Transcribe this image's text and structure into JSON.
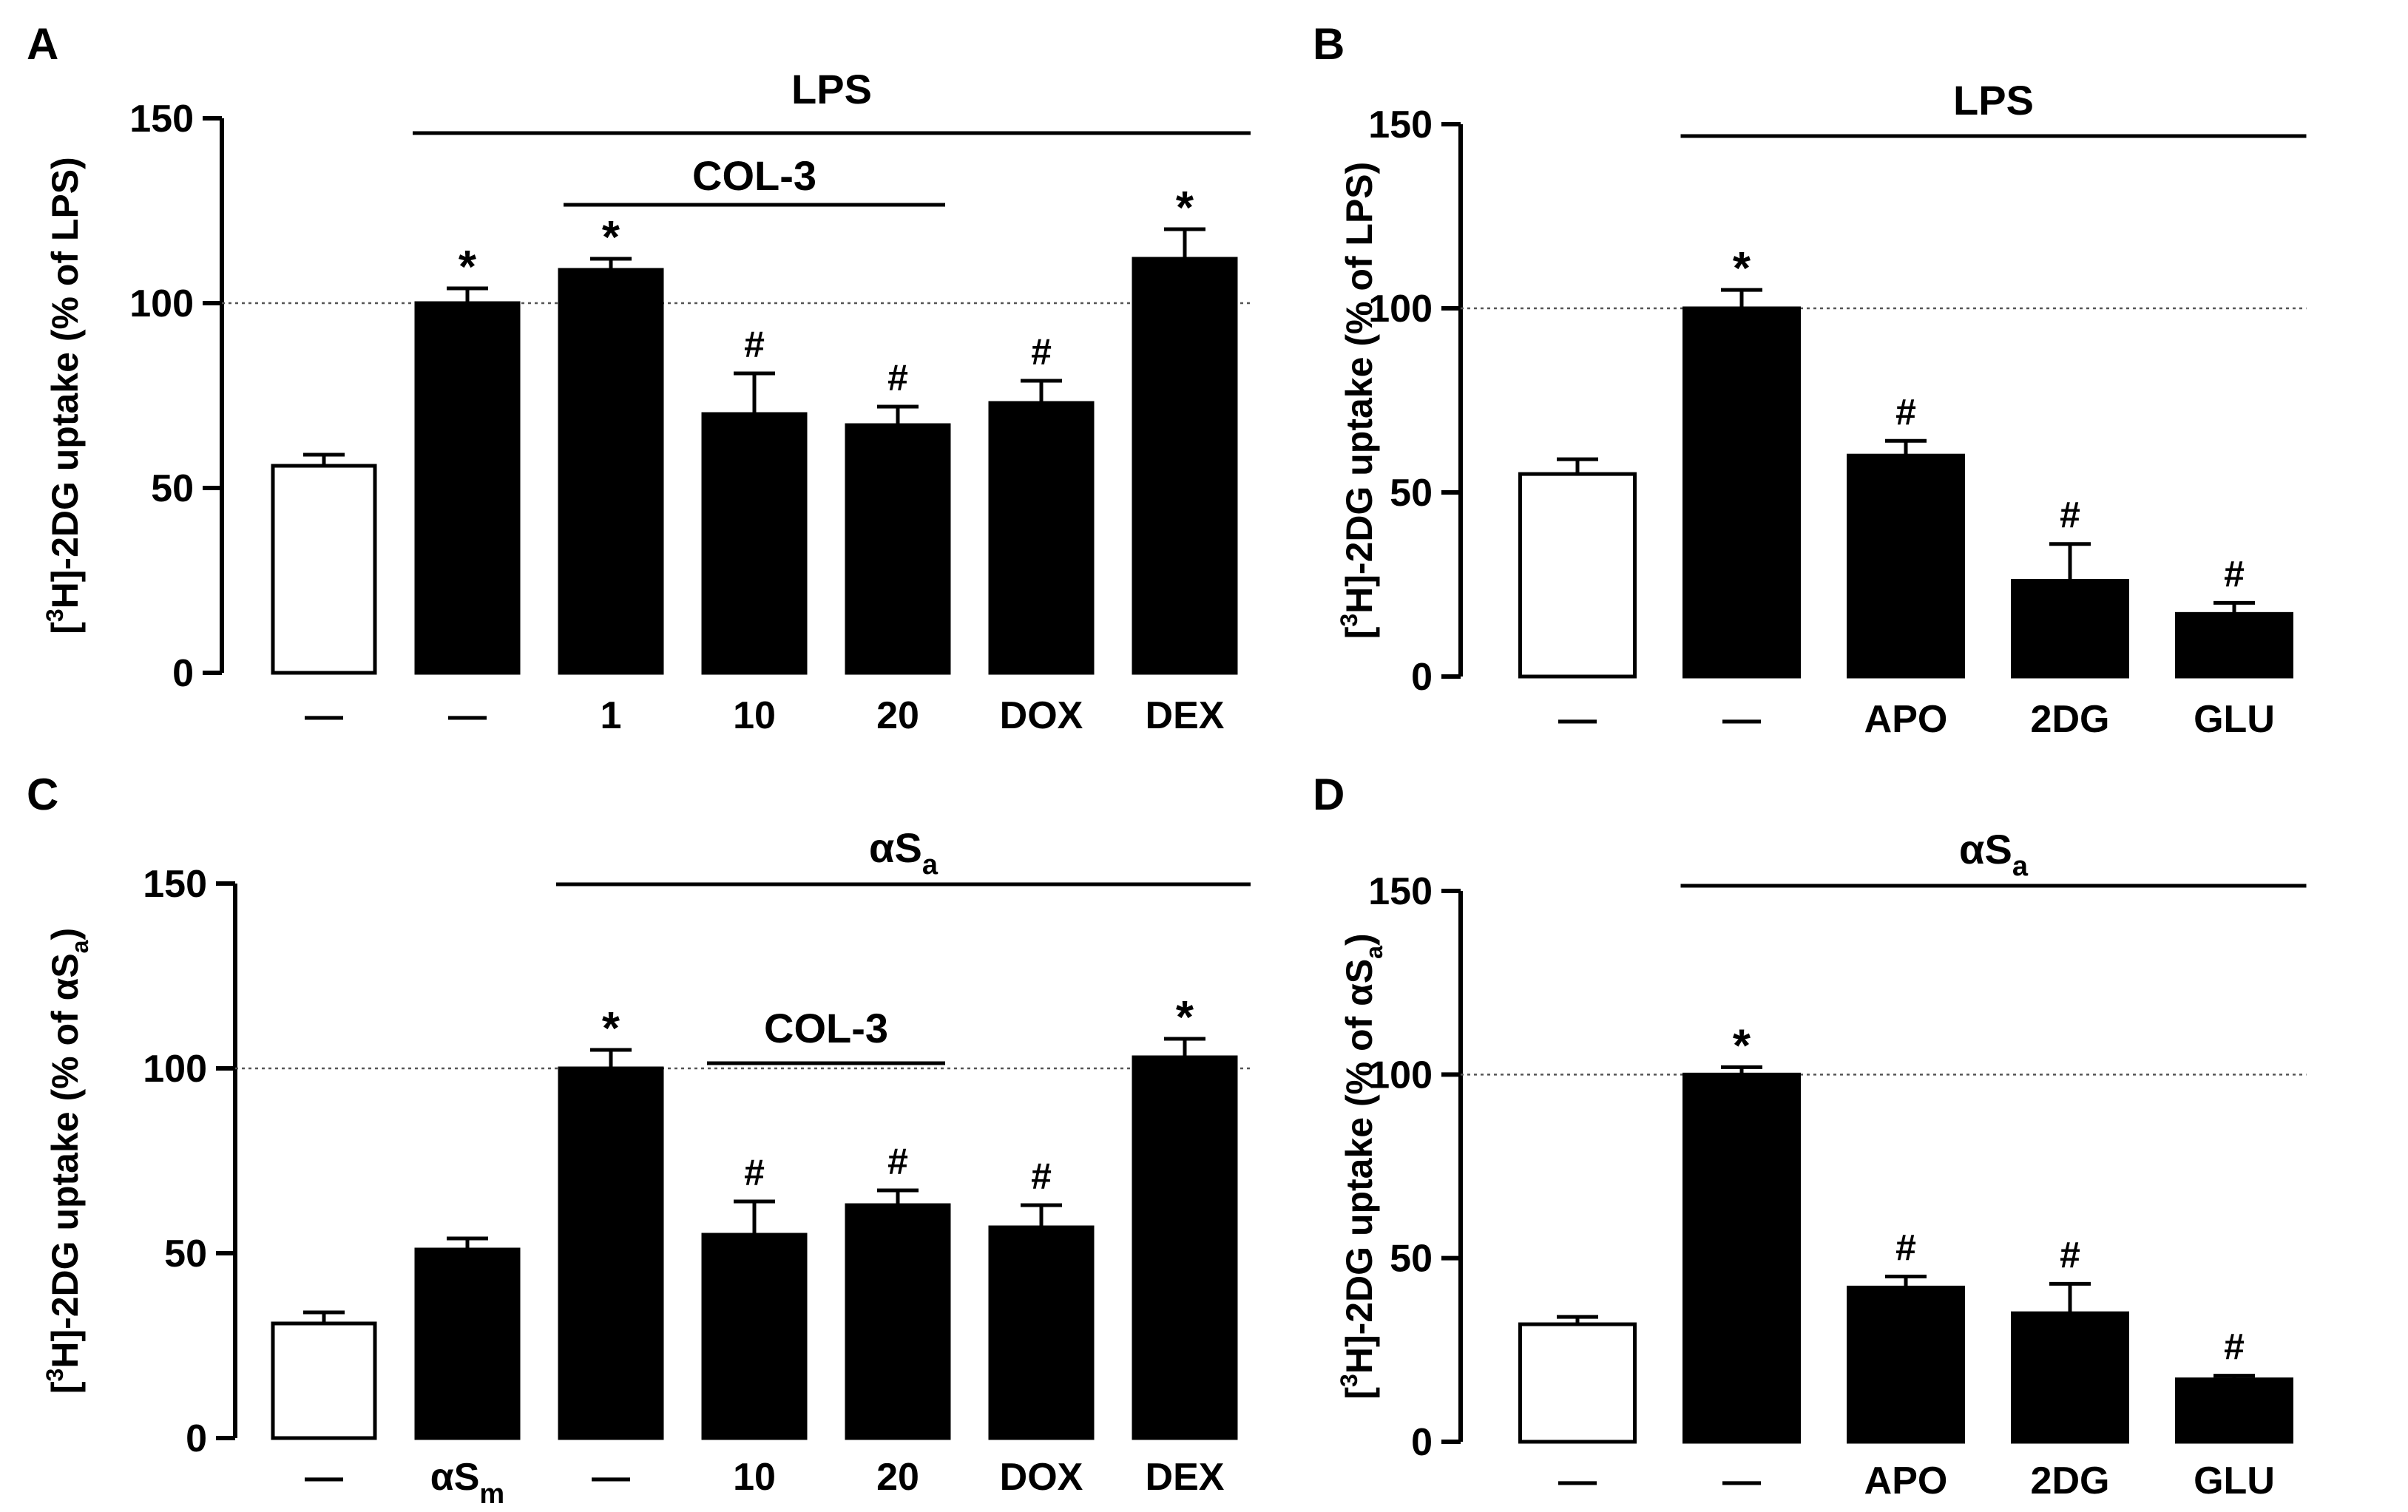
{
  "chart_data": [
    {
      "panel": "A",
      "type": "bar",
      "ylabel": {
        "pre": "[",
        "sup": "3",
        "post": "H]-2DG uptake (% of LPS)"
      },
      "ylim": [
        0,
        150
      ],
      "yticks": [
        "0",
        "50",
        "100",
        "150"
      ],
      "reference_line": 100,
      "categories": [
        "—",
        "—",
        "1",
        "10",
        "20",
        "DOX",
        "DEX"
      ],
      "values": [
        56,
        100,
        109,
        70,
        67,
        73,
        112
      ],
      "errors": [
        3,
        4,
        3,
        11,
        5,
        6,
        8
      ],
      "fills": [
        "white",
        "black",
        "black",
        "black",
        "black",
        "black",
        "black"
      ],
      "markers": [
        "",
        "*",
        "*",
        "#",
        "#",
        "#",
        "*"
      ],
      "groups": [
        {
          "label": "LPS",
          "from": 1,
          "to": 6,
          "level": 0
        },
        {
          "label": "COL-3",
          "from": 2,
          "to": 4,
          "level": 1
        }
      ]
    },
    {
      "panel": "B",
      "type": "bar",
      "ylabel": {
        "pre": "[",
        "sup": "3",
        "post": "H]-2DG uptake (% of LPS)"
      },
      "ylim": [
        0,
        150
      ],
      "yticks": [
        "0",
        "50",
        "100",
        "150"
      ],
      "reference_line": 100,
      "categories": [
        "—",
        "—",
        "APO",
        "2DG",
        "GLU"
      ],
      "values": [
        55,
        100,
        60,
        26,
        17
      ],
      "errors": [
        4,
        5,
        4,
        10,
        3
      ],
      "fills": [
        "white",
        "black",
        "black",
        "black",
        "black"
      ],
      "markers": [
        "",
        "*",
        "#",
        "#",
        "#"
      ],
      "groups": [
        {
          "label": "LPS",
          "from": 1,
          "to": 4,
          "level": 0
        }
      ]
    },
    {
      "panel": "C",
      "type": "bar",
      "ylabel": {
        "pre": "[",
        "sup": "3",
        "post": "H]-2DG uptake (% of αS",
        "sub": "a",
        "post2": ")"
      },
      "ylim": [
        0,
        150
      ],
      "yticks": [
        "0",
        "50",
        "100",
        "150"
      ],
      "reference_line": 100,
      "categories": [
        "—",
        "αS_m",
        "—",
        "10",
        "20",
        "DOX",
        "DEX"
      ],
      "category_subscripts": [
        "",
        "m",
        "",
        "",
        "",
        "",
        ""
      ],
      "category_mains": [
        "—",
        "αS",
        "—",
        "10",
        "20",
        "DOX",
        "DEX"
      ],
      "values": [
        31,
        51,
        100,
        55,
        63,
        57,
        103
      ],
      "errors": [
        3,
        3,
        5,
        9,
        4,
        6,
        5
      ],
      "fills": [
        "white",
        "black",
        "black",
        "black",
        "black",
        "black",
        "black"
      ],
      "markers": [
        "",
        "",
        "*",
        "#",
        "#",
        "#",
        "*"
      ],
      "groups": [
        {
          "label": "αS",
          "sub": "a",
          "from": 2,
          "to": 6,
          "level": 0
        },
        {
          "label": "COL-3",
          "from": 3,
          "to": 4,
          "level": 1
        }
      ]
    },
    {
      "panel": "D",
      "type": "bar",
      "ylabel": {
        "pre": "[",
        "sup": "3",
        "post": "H]-2DG uptake (% of αS",
        "sub": "a",
        "post2": ")"
      },
      "ylim": [
        0,
        150
      ],
      "yticks": [
        "0",
        "50",
        "100",
        "150"
      ],
      "reference_line": 100,
      "categories": [
        "—",
        "—",
        "APO",
        "2DG",
        "GLU"
      ],
      "values": [
        32,
        100,
        42,
        35,
        17
      ],
      "errors": [
        2,
        2,
        3,
        8,
        1
      ],
      "fills": [
        "white",
        "black",
        "black",
        "black",
        "black"
      ],
      "markers": [
        "",
        "*",
        "#",
        "#",
        "#"
      ],
      "groups": [
        {
          "label": "αS",
          "sub": "a",
          "from": 1,
          "to": 4,
          "level": 0
        }
      ]
    }
  ]
}
